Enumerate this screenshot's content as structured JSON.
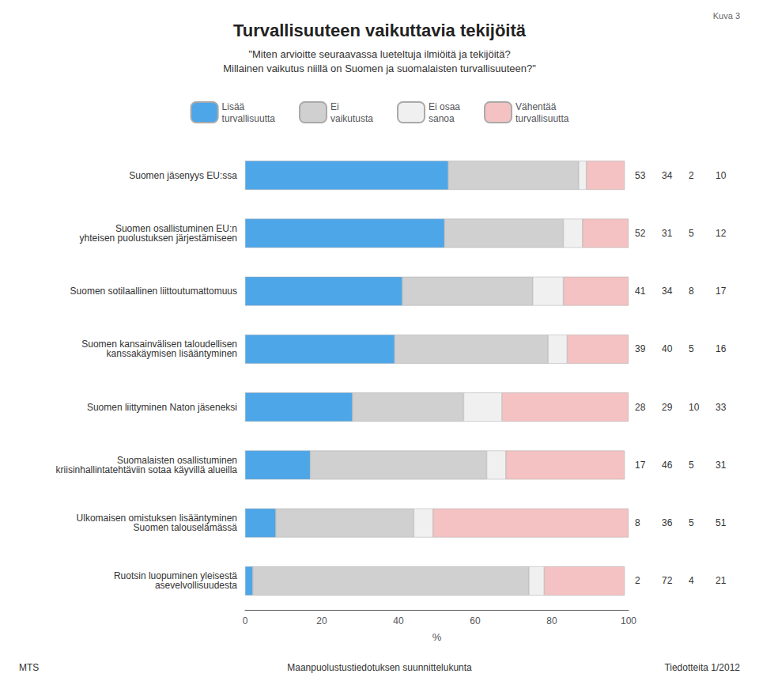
{
  "chart_data": {
    "type": "bar",
    "orientation": "horizontal",
    "stacked": true,
    "data_labels": true,
    "grid": false,
    "legend": "top",
    "title": "Turvallisuuteen vaikuttavia tekijöitä",
    "subtitle": "\"Miten arvioitte seuraavassa lueteltuja ilmiöitä ja tekijöitä?\nMillainen vaikutus niillä on Suomen ja suomalaisten turvallisuuteen?\"",
    "annotations": [
      "Kuva 3",
      "MTS",
      "Maanpuolustustiedotuksen suunnittelukunta",
      "Tiedotteita 1/2012"
    ],
    "xlabel": "%",
    "xlim": [
      0,
      100
    ],
    "xticks": [
      0,
      20,
      40,
      60,
      80,
      100
    ],
    "categories": [
      "Suomen jäsenyys EU:ssa",
      "Suomen osallistuminen EU:n\nyhteisen puolustuksen järjestämiseen",
      "Suomen sotilaallinen liittoutumattomuus",
      "Suomen kansainvälisen taloudellisen\nkanssakäymisen lisääntyminen",
      "Suomen liittyminen Naton jäseneksi",
      "Suomalaisten osallistuminen\nkriisinhallintatehtäviin sotaa käyvillä alueilla",
      "Ulkomaisen omistuksen lisääntyminen\nSuomen talouselämässä",
      "Ruotsin luopuminen yleisestä\nasevelvollisuudesta"
    ],
    "series": [
      {
        "name": "Lisää\nturvallisuutta",
        "color": "#4da6e8",
        "values": [
          53,
          52,
          41,
          39,
          28,
          17,
          8,
          2
        ]
      },
      {
        "name": "Ei\nvaikutusta",
        "color": "#d0d0d0",
        "values": [
          34,
          31,
          34,
          40,
          29,
          46,
          36,
          72
        ]
      },
      {
        "name": "Ei osaa\nsanoa",
        "color": "#f0f0f0",
        "values": [
          2,
          5,
          8,
          5,
          10,
          5,
          5,
          4
        ]
      },
      {
        "name": "Vähentää\nturvallisuutta",
        "color": "#f4c2c2",
        "values": [
          10,
          12,
          17,
          16,
          33,
          31,
          51,
          21
        ]
      }
    ]
  }
}
